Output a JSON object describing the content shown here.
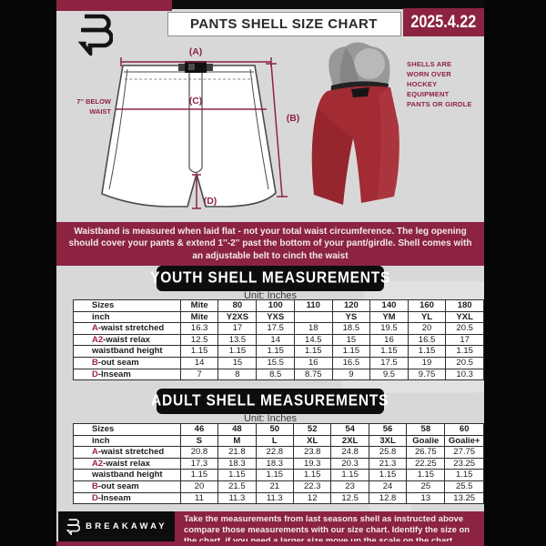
{
  "header": {
    "title": "PANTS SHELL SIZE CHART",
    "date": "2025.4.22"
  },
  "diagram": {
    "label_a": "(A)",
    "label_b": "(B)",
    "label_c": "(C)",
    "label_d": "(D)",
    "below_waist_note": "7'' BELOW WAIST",
    "photo_note": "SHELLS ARE WORN OVER HOCKEY EQUIPMENT PANTS OR GIRDLE"
  },
  "info_banner": "Waistband is measured when laid flat - not your total waist circumference. The leg opening should cover your pants & extend 1''-2'' past the bottom of your pant/girdle. Shell comes with an adjustable belt to cinch the waist",
  "youth_table": {
    "heading": "YOUTH SHELL MEASUREMENTS",
    "unit": "Unit: Inches",
    "rows": [
      {
        "label": "Sizes",
        "header": true,
        "values": [
          "Mite",
          "80",
          "100",
          "110",
          "120",
          "140",
          "160",
          "180"
        ]
      },
      {
        "label": "inch",
        "header": true,
        "values": [
          "Mite",
          "Y2XS",
          "YXS",
          "",
          "YS",
          "YM",
          "YL",
          "YXL"
        ]
      },
      {
        "prefix": "A",
        "label": "-waist stretched",
        "values": [
          "16.3",
          "17",
          "17.5",
          "18",
          "18.5",
          "19.5",
          "20",
          "20.5"
        ]
      },
      {
        "prefix": "A2",
        "label": "-waist relax",
        "values": [
          "12.5",
          "13.5",
          "14",
          "14.5",
          "15",
          "16",
          "16.5",
          "17"
        ]
      },
      {
        "label": "waistband height",
        "values": [
          "1.15",
          "1.15",
          "1.15",
          "1.15",
          "1.15",
          "1.15",
          "1.15",
          "1.15"
        ]
      },
      {
        "prefix": "B",
        "label": "-out seam",
        "values": [
          "14",
          "15",
          "15.5",
          "16",
          "16.5",
          "17.5",
          "19",
          "20.5"
        ]
      },
      {
        "prefix": "D",
        "label": "-Inseam",
        "values": [
          "7",
          "8",
          "8.5",
          "8.75",
          "9",
          "9.5",
          "9.75",
          "10.3"
        ]
      }
    ]
  },
  "adult_table": {
    "heading": "ADULT SHELL MEASUREMENTS",
    "unit": "Unit: Inches",
    "rows": [
      {
        "label": "Sizes",
        "header": true,
        "values": [
          "46",
          "48",
          "50",
          "52",
          "54",
          "56",
          "58",
          "60"
        ]
      },
      {
        "label": "inch",
        "header": true,
        "values": [
          "S",
          "M",
          "L",
          "XL",
          "2XL",
          "3XL",
          "Goalie",
          "Goalie+"
        ]
      },
      {
        "prefix": "A",
        "label": "-waist stretched",
        "values": [
          "20.8",
          "21.8",
          "22.8",
          "23.8",
          "24.8",
          "25.8",
          "26.75",
          "27.75"
        ]
      },
      {
        "prefix": "A2",
        "label": "-waist relax",
        "values": [
          "17.3",
          "18.3",
          "18.3",
          "19.3",
          "20.3",
          "21.3",
          "22.25",
          "23.25"
        ]
      },
      {
        "label": "waistband height",
        "values": [
          "1.15",
          "1.15",
          "1.15",
          "1.15",
          "1.15",
          "1.15",
          "1.15",
          "1.15"
        ]
      },
      {
        "prefix": "B",
        "label": "-out seam",
        "values": [
          "20",
          "21.5",
          "21",
          "22.3",
          "23",
          "24",
          "25",
          "25.5"
        ]
      },
      {
        "prefix": "D",
        "label": "-Inseam",
        "values": [
          "11",
          "11.3",
          "11.3",
          "12",
          "12.5",
          "12.8",
          "13",
          "13.25"
        ]
      }
    ]
  },
  "footer": {
    "brand": "BREAKAWAY",
    "note": "Take the measurements from last seasons shell as instructed above compare those measurements  with our size chart. Identify the size on the chart, if you need a larger size move up the scale on the chart"
  },
  "colors": {
    "maroon": "#8b2341",
    "black": "#0d0d0d",
    "content_bg": "#d9d8d8",
    "shell_red": "#a32b33",
    "prefix_red": "#9c2444"
  }
}
